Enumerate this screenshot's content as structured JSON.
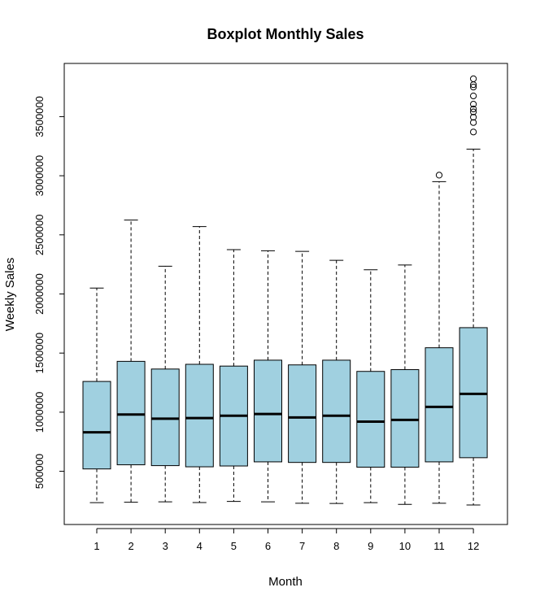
{
  "chart_data": {
    "type": "boxplot",
    "title": "Boxplot Monthly Sales",
    "xlabel": "Month",
    "ylabel": "Weekly Sales",
    "ylim": [
      50000,
      3950000
    ],
    "yticks": [
      500000,
      1000000,
      1500000,
      2000000,
      2500000,
      3000000,
      3500000
    ],
    "ytick_labels": [
      "500000",
      "1000000",
      "1500000",
      "2000000",
      "2500000",
      "3000000",
      "3500000"
    ],
    "categories": [
      "1",
      "2",
      "3",
      "4",
      "5",
      "6",
      "7",
      "8",
      "9",
      "10",
      "11",
      "12"
    ],
    "box_color": "#a0d0e0",
    "boxes": [
      {
        "month": "1",
        "whisker_low": 235000,
        "q1": 520000,
        "median": 830000,
        "q3": 1260000,
        "whisker_high": 2050000,
        "outliers": []
      },
      {
        "month": "2",
        "whisker_low": 238000,
        "q1": 555000,
        "median": 980000,
        "q3": 1430000,
        "whisker_high": 2625000,
        "outliers": []
      },
      {
        "month": "3",
        "whisker_low": 242000,
        "q1": 548000,
        "median": 945000,
        "q3": 1365000,
        "whisker_high": 2235000,
        "outliers": []
      },
      {
        "month": "4",
        "whisker_low": 236000,
        "q1": 538000,
        "median": 950000,
        "q3": 1405000,
        "whisker_high": 2570000,
        "outliers": []
      },
      {
        "month": "5",
        "whisker_low": 245000,
        "q1": 545000,
        "median": 970000,
        "q3": 1390000,
        "whisker_high": 2375000,
        "outliers": []
      },
      {
        "month": "6",
        "whisker_low": 242000,
        "q1": 580000,
        "median": 985000,
        "q3": 1440000,
        "whisker_high": 2365000,
        "outliers": []
      },
      {
        "month": "7",
        "whisker_low": 230000,
        "q1": 575000,
        "median": 955000,
        "q3": 1400000,
        "whisker_high": 2360000,
        "outliers": []
      },
      {
        "month": "8",
        "whisker_low": 228000,
        "q1": 575000,
        "median": 970000,
        "q3": 1440000,
        "whisker_high": 2285000,
        "outliers": []
      },
      {
        "month": "9",
        "whisker_low": 235000,
        "q1": 535000,
        "median": 920000,
        "q3": 1345000,
        "whisker_high": 2205000,
        "outliers": []
      },
      {
        "month": "10",
        "whisker_low": 220000,
        "q1": 535000,
        "median": 935000,
        "q3": 1360000,
        "whisker_high": 2245000,
        "outliers": []
      },
      {
        "month": "11",
        "whisker_low": 230000,
        "q1": 580000,
        "median": 1045000,
        "q3": 1545000,
        "whisker_high": 2950000,
        "outliers": [
          3005000
        ]
      },
      {
        "month": "12",
        "whisker_low": 215000,
        "q1": 615000,
        "median": 1155000,
        "q3": 1715000,
        "whisker_high": 3225000,
        "outliers": [
          3370000,
          3450000,
          3495000,
          3540000,
          3565000,
          3605000,
          3675000,
          3750000,
          3770000,
          3820000
        ]
      }
    ]
  }
}
